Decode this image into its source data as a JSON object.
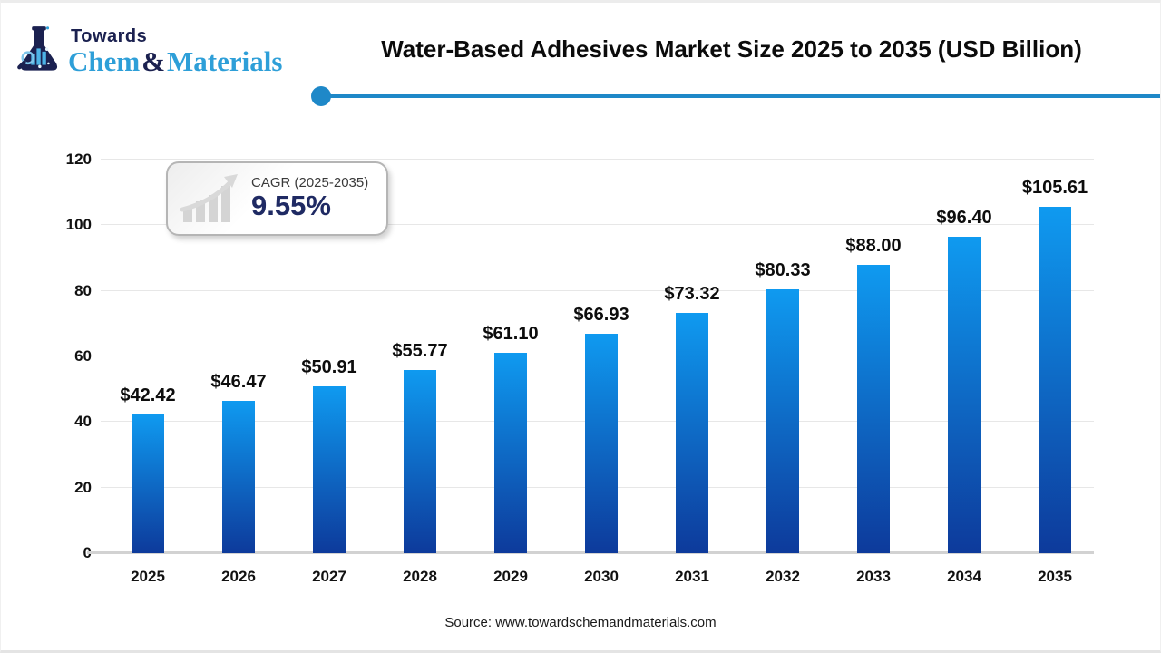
{
  "logo": {
    "brand_top": "Towards",
    "brand_chem": "Chem",
    "brand_amp": "&",
    "brand_materials": "Materials"
  },
  "header": {
    "title": "Water-Based Adhesives Market Size 2025 to 2035 (USD Billion)"
  },
  "cagr_badge": {
    "label": "CAGR (2025-2035)",
    "value": "9.55%",
    "icon": "growth-chart-icon"
  },
  "source": "Source: www.towardschemandmaterials.com",
  "colors": {
    "bar_gradient_top": "#0f9af0",
    "bar_gradient_bottom": "#0d3a9b",
    "accent_line": "#1e88c8",
    "navy": "#1f2a63",
    "logo_blue": "#2e9fd8",
    "gridline": "#e7e7e7",
    "baseline": "#d2d2d2"
  },
  "chart_data": {
    "type": "bar",
    "title": "Water-Based Adhesives Market Size 2025 to 2035 (USD Billion)",
    "unit": "USD Billion",
    "categories": [
      "2025",
      "2026",
      "2027",
      "2028",
      "2029",
      "2030",
      "2031",
      "2032",
      "2033",
      "2034",
      "2035"
    ],
    "values": [
      42.42,
      46.47,
      50.91,
      55.77,
      61.1,
      66.93,
      73.32,
      80.33,
      88.0,
      96.4,
      105.61
    ],
    "bar_labels": [
      "$42.42",
      "$46.47",
      "$50.91",
      "$55.77",
      "$61.10",
      "$66.93",
      "$73.32",
      "$80.33",
      "$88.00",
      "$96.40",
      "$105.61"
    ],
    "xlabel": "",
    "ylabel": "",
    "ylim": [
      0,
      120
    ],
    "yticks": [
      0,
      20,
      40,
      60,
      80,
      100,
      120
    ],
    "grid": true,
    "legend": false
  }
}
